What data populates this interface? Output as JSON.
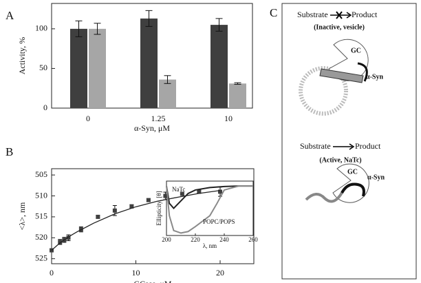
{
  "chart_data": [
    {
      "type": "bar",
      "label": "A",
      "categories": [
        "0",
        "1.25",
        "10"
      ],
      "series": [
        {
          "color": "#3f3f3f",
          "values": [
            100,
            113,
            105
          ],
          "errors": [
            10,
            10,
            8
          ]
        },
        {
          "color": "#a6a6a6",
          "values": [
            100,
            36,
            31
          ],
          "errors": [
            7,
            5,
            1
          ]
        }
      ],
      "ylim": [
        0,
        132
      ],
      "yticks": [
        0,
        50,
        100
      ],
      "ylabel": "Activity, %",
      "xlabel": "α-Syn, μM"
    },
    {
      "type": "scatter",
      "label": "B",
      "series": [
        {
          "mode": "markers",
          "color": "#404040",
          "x": [
            0,
            1,
            1.5,
            2,
            3.5,
            5.5,
            7.5,
            9.5,
            11.5,
            13.5,
            15.5,
            17.5,
            20
          ],
          "values": [
            523,
            521,
            520.5,
            520,
            518,
            515,
            513.5,
            512.5,
            511,
            510,
            509.5,
            509,
            509
          ],
          "errors": [
            0.4,
            0.6,
            0.6,
            0.7,
            0.6,
            0.3,
            1.2,
            0.4,
            0.3,
            0.9,
            0.3,
            0.3,
            1.1
          ]
        },
        {
          "mode": "line",
          "color": "#222222",
          "x": [
            0,
            1,
            2,
            3,
            5,
            7.5,
            10,
            12.5,
            15,
            17.5,
            20
          ],
          "values": [
            523,
            521.2,
            519.8,
            518.6,
            516.5,
            514.3,
            512.6,
            511.3,
            510.3,
            509.4,
            508.7
          ]
        }
      ],
      "xlim": [
        0,
        24
      ],
      "xticks": [
        0,
        10,
        20
      ],
      "ylim": [
        526.2,
        503.5
      ],
      "yticks": [
        505,
        510,
        515,
        520,
        525
      ],
      "ylabel": "<λ>, nm",
      "xlabel": "GCase, μM"
    },
    {
      "type": "line",
      "xlim": [
        200,
        260
      ],
      "xticks": [
        200,
        220,
        240,
        260
      ],
      "ylim": [
        -1,
        0.1
      ],
      "xlabel": "λ, nm",
      "ylabel": "Ellipticity, [θ]",
      "series": [
        {
          "name": "NaTc",
          "color": "#222222",
          "x": [
            200,
            202,
            205,
            210,
            215,
            220,
            230,
            240,
            250,
            260
          ],
          "values": [
            0,
            -0.35,
            -0.45,
            -0.3,
            -0.15,
            -0.08,
            -0.03,
            -0.01,
            0,
            0
          ]
        },
        {
          "name": "POPC/POPS",
          "color": "#8a8a8a",
          "x": [
            200,
            202,
            205,
            210,
            215,
            220,
            230,
            235,
            240,
            250,
            260
          ],
          "values": [
            0,
            -0.6,
            -0.9,
            -0.95,
            -0.92,
            -0.82,
            -0.6,
            -0.35,
            -0.08,
            0,
            0
          ]
        }
      ]
    }
  ],
  "diagram": {
    "label": "C",
    "top": {
      "substrate": "Substrate",
      "product": "Product",
      "state": "(Inactive, vesicle)",
      "enzyme": "GC",
      "protein": "α-Syn"
    },
    "bottom": {
      "substrate": "Substrate",
      "product": "Product",
      "state": "(Active, NaTc)",
      "enzyme": "GC",
      "protein": "α-Syn"
    }
  }
}
